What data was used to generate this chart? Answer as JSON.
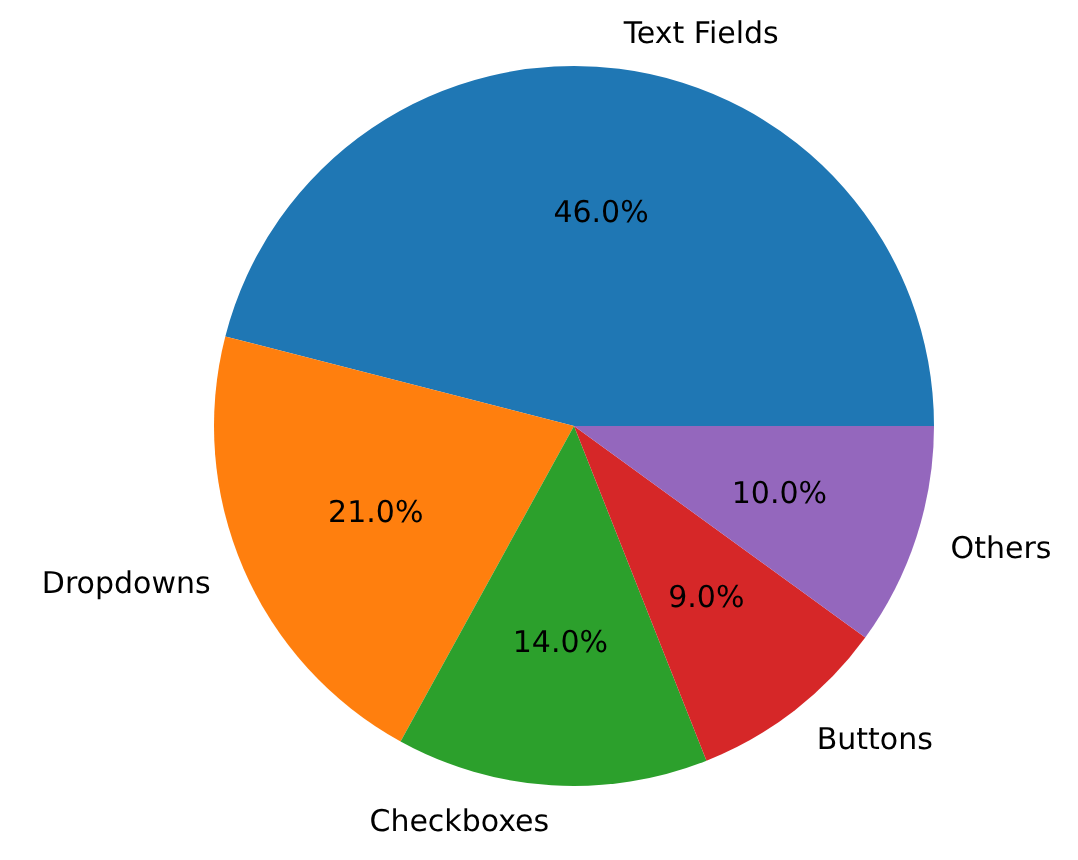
{
  "chart_data": {
    "type": "pie",
    "categories": [
      "Text Fields",
      "Dropdowns",
      "Checkboxes",
      "Buttons",
      "Others"
    ],
    "values": [
      46,
      21,
      14,
      9,
      10
    ],
    "colors": [
      "#1f77b4",
      "#ff7f0e",
      "#2ca02c",
      "#d62728",
      "#9467bd"
    ],
    "value_labels": [
      "46.0%",
      "21.0%",
      "14.0%",
      "9.0%",
      "10.0%"
    ]
  }
}
